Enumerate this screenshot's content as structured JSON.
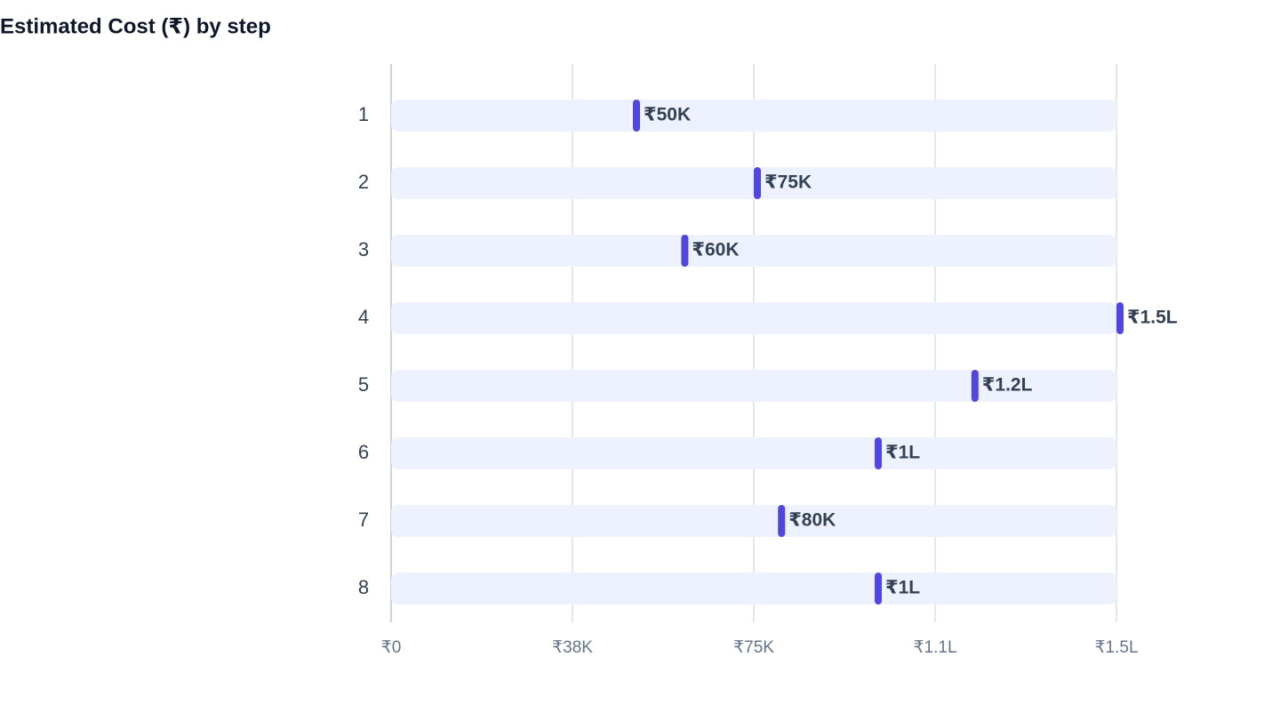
{
  "chart_data": {
    "type": "marker-bar",
    "title": "Estimated Cost (₹) by step",
    "categories": [
      "1",
      "2",
      "3",
      "4",
      "5",
      "6",
      "7",
      "8"
    ],
    "values": [
      50000,
      75000,
      60000,
      150000,
      120000,
      100000,
      80000,
      100000
    ],
    "value_labels": [
      "₹50K",
      "₹75K",
      "₹60K",
      "₹1.5L",
      "₹1.2L",
      "₹1L",
      "₹80K",
      "₹1L"
    ],
    "color": "#4f46e5",
    "xlim": [
      0,
      150000
    ],
    "xticks": [
      {
        "value": 0,
        "label": "₹0"
      },
      {
        "value": 37500,
        "label": "₹38K"
      },
      {
        "value": 75000,
        "label": "₹75K"
      },
      {
        "value": 112500,
        "label": "₹1.1L"
      },
      {
        "value": 150000,
        "label": "₹1.5L"
      }
    ],
    "grid": true
  }
}
